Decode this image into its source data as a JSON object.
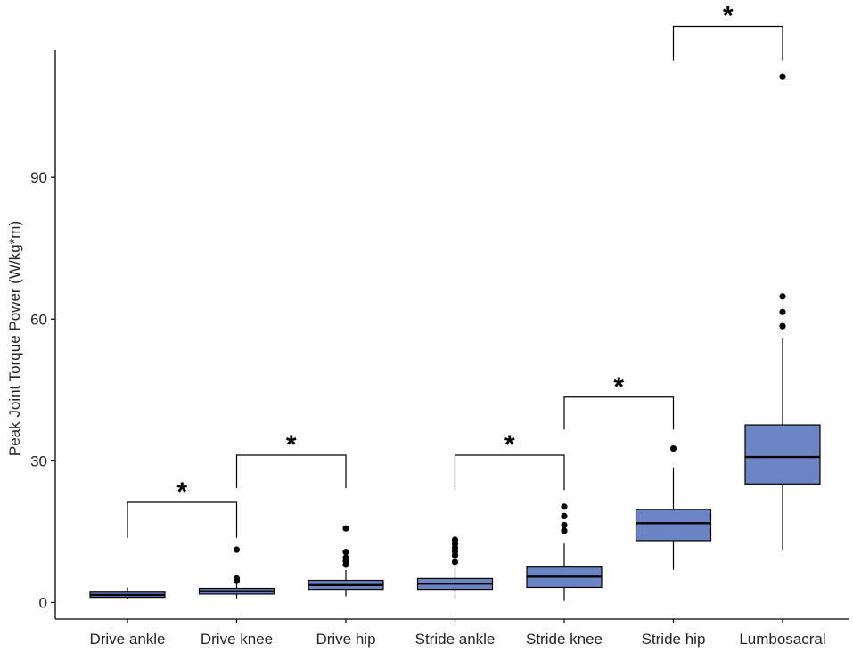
{
  "chart_data": {
    "type": "boxplot",
    "title": "",
    "xlabel": "",
    "ylabel": "Peak Joint Torque Power (W/kg*m)",
    "ylim": [
      -3.5,
      117
    ],
    "yticks": [
      0,
      30,
      60,
      90
    ],
    "grid": false,
    "legend": "none",
    "box_color": "#6b84c3",
    "categories": [
      "Drive ankle",
      "Drive knee",
      "Drive hip",
      "Stride ankle",
      "Stride knee",
      "Stride hip",
      "Lumbosacral"
    ],
    "boxes": [
      {
        "name": "Drive ankle",
        "whisker_low": 0.7,
        "q1": 1.1,
        "median": 1.6,
        "q3": 2.2,
        "whisker_high": 3.2,
        "outliers": []
      },
      {
        "name": "Drive knee",
        "whisker_low": 0.9,
        "q1": 1.8,
        "median": 2.4,
        "q3": 3.0,
        "whisker_high": 4.0,
        "outliers": [
          4.6,
          5.1,
          11.2
        ]
      },
      {
        "name": "Drive hip",
        "whisker_low": 1.3,
        "q1": 2.8,
        "median": 3.7,
        "q3": 4.7,
        "whisker_high": 6.9,
        "outliers": [
          8.0,
          8.8,
          9.5,
          10.7,
          15.7
        ]
      },
      {
        "name": "Stride ankle",
        "whisker_low": 0.9,
        "q1": 2.8,
        "median": 4.0,
        "q3": 5.1,
        "whisker_high": 7.8,
        "outliers": [
          8.6,
          10.0,
          10.8,
          11.6,
          12.4,
          13.3
        ]
      },
      {
        "name": "Stride knee",
        "whisker_low": 0.3,
        "q1": 3.2,
        "median": 5.5,
        "q3": 7.5,
        "whisker_high": 12.5,
        "outliers": [
          15.2,
          16.4,
          18.3,
          20.3
        ]
      },
      {
        "name": "Stride hip",
        "whisker_low": 6.9,
        "q1": 13.1,
        "median": 16.8,
        "q3": 19.7,
        "whisker_high": 28.6,
        "outliers": [
          32.6
        ]
      },
      {
        "name": "Lumbosacral",
        "whisker_low": 11.2,
        "q1": 25.1,
        "median": 30.8,
        "q3": 37.6,
        "whisker_high": 55.9,
        "outliers": [
          58.5,
          61.5,
          64.8,
          111.3
        ]
      }
    ],
    "significance": [
      {
        "from": 0,
        "to": 1,
        "y": 21.2,
        "leg_low": 13.7,
        "label": "*"
      },
      {
        "from": 1,
        "to": 2,
        "y": 31.2,
        "leg_low": 24.2,
        "label": "*"
      },
      {
        "from": 3,
        "to": 4,
        "y": 31.2,
        "leg_low": 23.8,
        "label": "*"
      },
      {
        "from": 4,
        "to": 5,
        "y": 43.5,
        "leg_low": 36.6,
        "label": "*"
      },
      {
        "from": 5,
        "to": 6,
        "y": 122.0,
        "leg_low": 114.8,
        "label": "*"
      }
    ]
  }
}
